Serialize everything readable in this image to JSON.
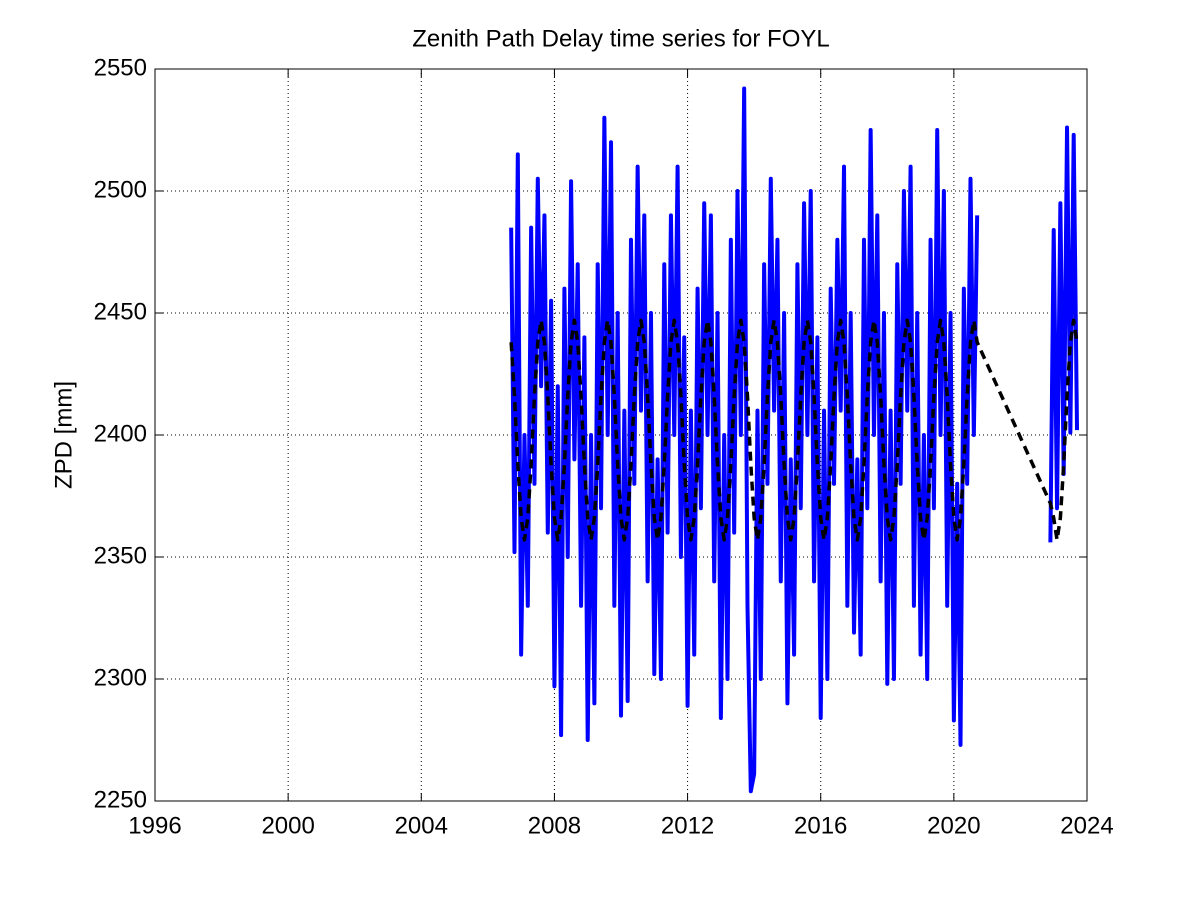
{
  "chart_data": {
    "type": "line",
    "title": "Zenith Path Delay time series for FOYL",
    "ylabel": "ZPD [mm]",
    "xlim": [
      1996,
      2024
    ],
    "xticks": [
      1996,
      2000,
      2004,
      2008,
      2012,
      2016,
      2020,
      2024
    ],
    "ylim": [
      2250,
      2550
    ],
    "yticks": [
      2250,
      2300,
      2350,
      2400,
      2450,
      2500,
      2550
    ],
    "grid": true,
    "series": [
      {
        "color": "#0000ff",
        "style": "solid",
        "x": [
          2006.7,
          2006.8,
          2006.9,
          2007,
          2007.1,
          2007.2,
          2007.3,
          2007.4,
          2007.5,
          2007.6,
          2007.7,
          2007.8,
          2007.9,
          2008,
          2008.1,
          2008.2,
          2008.3,
          2008.4,
          2008.5,
          2008.6,
          2008.7,
          2008.8,
          2008.9,
          2009,
          2009.1,
          2009.2,
          2009.3,
          2009.4,
          2009.5,
          2009.6,
          2009.7,
          2009.8,
          2009.9,
          2010,
          2010.1,
          2010.2,
          2010.3,
          2010.4,
          2010.5,
          2010.6,
          2010.7,
          2010.8,
          2010.9,
          2011,
          2011.1,
          2011.2,
          2011.3,
          2011.4,
          2011.5,
          2011.6,
          2011.7,
          2011.8,
          2011.9,
          2012,
          2012.1,
          2012.2,
          2012.3,
          2012.4,
          2012.5,
          2012.6,
          2012.7,
          2012.8,
          2012.9,
          2013,
          2013.1,
          2013.2,
          2013.3,
          2013.4,
          2013.5,
          2013.6,
          2013.7,
          2013.8,
          2013.9,
          2014,
          2014.1,
          2014.2,
          2014.3,
          2014.4,
          2014.5,
          2014.6,
          2014.7,
          2014.8,
          2014.9,
          2015,
          2015.1,
          2015.2,
          2015.3,
          2015.4,
          2015.5,
          2015.6,
          2015.7,
          2015.8,
          2015.9,
          2016,
          2016.1,
          2016.2,
          2016.3,
          2016.4,
          2016.5,
          2016.6,
          2016.7,
          2016.8,
          2016.9,
          2017,
          2017.1,
          2017.2,
          2017.3,
          2017.4,
          2017.5,
          2017.6,
          2017.7,
          2017.8,
          2017.9,
          2018,
          2018.1,
          2018.2,
          2018.3,
          2018.4,
          2018.5,
          2018.6,
          2018.7,
          2018.8,
          2018.9,
          2019,
          2019.1,
          2019.2,
          2019.3,
          2019.4,
          2019.5,
          2019.6,
          2019.7,
          2019.8,
          2019.9,
          2020,
          2020.1,
          2020.2,
          2020.3,
          2020.4,
          2020.5,
          2020.6,
          2020.7,
          2021.8,
          2022.9,
          2023,
          2023.1,
          2023.2,
          2023.3,
          2023.4,
          2023.5,
          2023.6,
          2023.7
        ],
        "values": [
          2485,
          2352,
          2515,
          2310,
          2400,
          2330,
          2485,
          2380,
          2505,
          2420,
          2490,
          2360,
          2455,
          2297,
          2420,
          2277,
          2460,
          2350,
          2504,
          2390,
          2470,
          2330,
          2440,
          2275,
          2400,
          2290,
          2470,
          2370,
          2530,
          2400,
          2520,
          2330,
          2450,
          2285,
          2410,
          2291,
          2480,
          2380,
          2510,
          2410,
          2490,
          2340,
          2450,
          2302,
          2390,
          2300,
          2470,
          2360,
          2490,
          2400,
          2510,
          2350,
          2440,
          2289,
          2410,
          2310,
          2460,
          2370,
          2495,
          2400,
          2490,
          2340,
          2450,
          2284,
          2400,
          2300,
          2480,
          2360,
          2500,
          2400,
          2542,
          2330,
          2254,
          2261,
          2410,
          2300,
          2470,
          2380,
          2505,
          2410,
          2480,
          2340,
          2450,
          2290,
          2390,
          2310,
          2470,
          2370,
          2495,
          2400,
          2500,
          2340,
          2440,
          2284,
          2410,
          2300,
          2460,
          2380,
          2480,
          2410,
          2510,
          2330,
          2450,
          2319,
          2390,
          2310,
          2480,
          2370,
          2525,
          2400,
          2490,
          2340,
          2450,
          2298,
          2410,
          2300,
          2470,
          2380,
          2500,
          2410,
          2510,
          2330,
          2450,
          2310,
          2400,
          2300,
          2480,
          2370,
          2525,
          2400,
          2500,
          2330,
          2450,
          2283,
          2380,
          2273,
          2460,
          2380,
          2505,
          2400,
          2490,
          null,
          2356,
          2484,
          2370,
          2495,
          2384,
          2526,
          2401,
          2523,
          2402
        ]
      },
      {
        "color": "#000000",
        "style": "dashed",
        "x": [
          2006.7,
          2006.8,
          2006.9,
          2007,
          2007.1,
          2007.2,
          2007.3,
          2007.4,
          2007.5,
          2007.6,
          2007.7,
          2007.8,
          2007.9,
          2008,
          2008.1,
          2008.2,
          2008.3,
          2008.4,
          2008.5,
          2008.6,
          2008.7,
          2008.8,
          2008.9,
          2009,
          2009.1,
          2009.2,
          2009.3,
          2009.4,
          2009.5,
          2009.6,
          2009.7,
          2009.8,
          2009.9,
          2010,
          2010.1,
          2010.2,
          2010.3,
          2010.4,
          2010.5,
          2010.6,
          2010.7,
          2010.8,
          2010.9,
          2011,
          2011.1,
          2011.2,
          2011.3,
          2011.4,
          2011.5,
          2011.6,
          2011.7,
          2011.8,
          2011.9,
          2012,
          2012.1,
          2012.2,
          2012.3,
          2012.4,
          2012.5,
          2012.6,
          2012.7,
          2012.8,
          2012.9,
          2013,
          2013.1,
          2013.2,
          2013.3,
          2013.4,
          2013.5,
          2013.6,
          2013.7,
          2013.8,
          2013.9,
          2014,
          2014.1,
          2014.2,
          2014.3,
          2014.4,
          2014.5,
          2014.6,
          2014.7,
          2014.8,
          2014.9,
          2015,
          2015.1,
          2015.2,
          2015.3,
          2015.4,
          2015.5,
          2015.6,
          2015.7,
          2015.8,
          2015.9,
          2016,
          2016.1,
          2016.2,
          2016.3,
          2016.4,
          2016.5,
          2016.6,
          2016.7,
          2016.8,
          2016.9,
          2017,
          2017.1,
          2017.2,
          2017.3,
          2017.4,
          2017.5,
          2017.6,
          2017.7,
          2017.8,
          2017.9,
          2018,
          2018.1,
          2018.2,
          2018.3,
          2018.4,
          2018.5,
          2018.6,
          2018.7,
          2018.8,
          2018.9,
          2019,
          2019.1,
          2019.2,
          2019.3,
          2019.4,
          2019.5,
          2019.6,
          2019.7,
          2019.8,
          2019.9,
          2020,
          2020.1,
          2020.2,
          2020.3,
          2020.4,
          2020.5,
          2020.6,
          2020.7,
          2022.9,
          2023,
          2023.1,
          2023.2,
          2023.3,
          2023.4,
          2023.5,
          2023.6,
          2023.7
        ],
        "values": [
          2438,
          2416,
          2388,
          2366,
          2357,
          2366,
          2388,
          2416,
          2438,
          2447,
          2438,
          2416,
          2388,
          2366,
          2357,
          2366,
          2388,
          2416,
          2438,
          2447,
          2438,
          2416,
          2388,
          2366,
          2357,
          2366,
          2388,
          2416,
          2438,
          2447,
          2438,
          2416,
          2388,
          2366,
          2357,
          2366,
          2388,
          2416,
          2438,
          2447,
          2438,
          2416,
          2388,
          2366,
          2357,
          2366,
          2388,
          2416,
          2438,
          2447,
          2438,
          2416,
          2388,
          2366,
          2357,
          2366,
          2388,
          2416,
          2438,
          2447,
          2438,
          2416,
          2388,
          2366,
          2357,
          2366,
          2388,
          2416,
          2438,
          2447,
          2438,
          2416,
          2388,
          2366,
          2357,
          2366,
          2388,
          2416,
          2438,
          2447,
          2438,
          2416,
          2388,
          2366,
          2357,
          2366,
          2388,
          2416,
          2438,
          2447,
          2438,
          2416,
          2388,
          2366,
          2357,
          2366,
          2388,
          2416,
          2438,
          2447,
          2438,
          2416,
          2388,
          2366,
          2357,
          2366,
          2388,
          2416,
          2438,
          2447,
          2438,
          2416,
          2388,
          2366,
          2357,
          2366,
          2388,
          2416,
          2438,
          2447,
          2438,
          2416,
          2388,
          2366,
          2357,
          2366,
          2388,
          2416,
          2438,
          2447,
          2438,
          2416,
          2388,
          2366,
          2357,
          2366,
          2388,
          2416,
          2438,
          2447,
          2438,
          2372,
          2366,
          2357,
          2366,
          2388,
          2416,
          2438,
          2447,
          2438
        ]
      }
    ]
  }
}
